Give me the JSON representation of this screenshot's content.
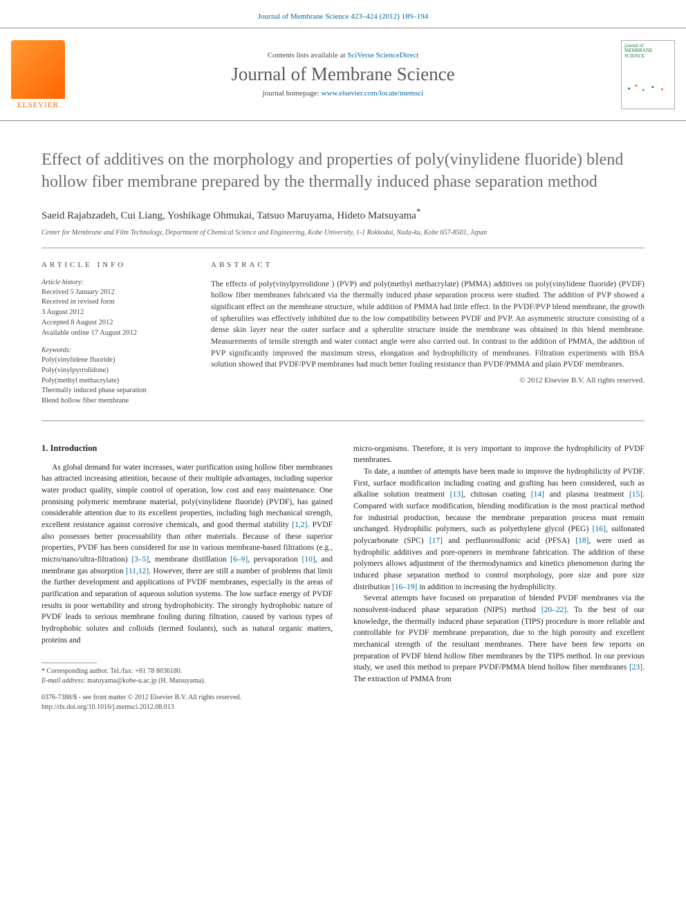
{
  "header": {
    "top_link_prefix": "Journal of Membrane Science 423–424 (2012) 189–194",
    "contents_text": "Contents lists available at ",
    "contents_link": "SciVerse ScienceDirect",
    "journal_name": "Journal of Membrane Science",
    "homepage_text": "journal homepage: ",
    "homepage_link": "www.elsevier.com/locate/memsci",
    "elsevier_label": "ELSEVIER",
    "cover_title": "journal of MEMBRANE SCIENCE"
  },
  "article": {
    "title": "Effect of additives on the morphology and properties of poly(vinylidene fluoride) blend hollow fiber membrane prepared by the thermally induced phase separation method",
    "authors": "Saeid Rajabzadeh, Cui Liang, Yoshikage Ohmukai, Tatsuo Maruyama, Hideto Matsuyama",
    "corr_marker": "*",
    "affiliation": "Center for Membrane and Film Technology, Department of Chemical Science and Engineering, Kobe University, 1-1 Rokkodai, Nada-ku, Kobe 657-8501, Japan"
  },
  "info": {
    "heading": "ARTICLE INFO",
    "history_label": "Article history:",
    "history": [
      "Received 5 January 2012",
      "Received in revised form",
      "3 August 2012",
      "Accepted 8 August 2012",
      "Available online 17 August 2012"
    ],
    "keywords_label": "Keywords:",
    "keywords": [
      "Poly(vinylidene fluoride)",
      "Poly(vinylpyrrolidone)",
      "Poly(methyl methacrylate)",
      "Thermally induced phase separation",
      "Blend hollow fiber membrane"
    ]
  },
  "abstract": {
    "heading": "ABSTRACT",
    "text": "The effects of poly(vinylpyrrolidone ) (PVP) and poly(methyl methacrylate) (PMMA) additives on poly(vinylidene fluoride) (PVDF) hollow fiber membranes fabricated via the thermally induced phase separation process were studied. The addition of PVP showed a significant effect on the membrane structure, while addition of PMMA had little effect. In the PVDF/PVP blend membrane, the growth of spherulites was effectively inhibited due to the low compatibility between PVDF and PVP. An asymmetric structure consisting of a dense skin layer near the outer surface and a spherulite structure inside the membrane was obtained in this blend membrane. Measurements of tensile strength and water contact angle were also carried out. In contrast to the addition of PMMA, the addition of PVP significantly improved the maximum stress, elongation and hydrophilicity of membranes. Filtration experiments with BSA solution showed that PVDF/PVP membranes had much better fouling resistance than PVDF/PMMA and plain PVDF membranes.",
    "copyright": "© 2012 Elsevier B.V. All rights reserved."
  },
  "body": {
    "section_heading": "1. Introduction",
    "col1_p1_a": "As global demand for water increases, water purification using hollow fiber membranes has attracted increasing attention, because of their multiple advantages, including superior water product quality, simple control of operation, low cost and easy maintenance. One promising polymeric membrane material, poly(vinylidene fluoride) (PVDF), has gained considerable attention due to its excellent properties, including high mechanical strength, excellent resistance against corrosive chemicals, and good thermal stability ",
    "ref_1_2": "[1,2]",
    "col1_p1_b": ". PVDF also possesses better processability than other materials. Because of these superior properties, PVDF has been considered for use in various membrane-based filtrations (e.g., micro/nano/ultra-filtration) ",
    "ref_3_5": "[3–5]",
    "col1_p1_c": ", membrane distillation ",
    "ref_6_9": "[6–9]",
    "col1_p1_d": ", pervaporation ",
    "ref_10": "[10]",
    "col1_p1_e": ", and membrane gas absorption ",
    "ref_11_12": "[11,12]",
    "col1_p1_f": ". However, there are still a number of problems that limit the further development and applications of PVDF membranes, especially in the areas of purification and separation of aqueous solution systems. The low surface energy of PVDF results in poor wettability and strong hydrophobicity. The strongly hydrophobic nature of PVDF leads to serious membrane fouling during filtration, caused by various types of hydrophobic solutes and colloids (termed foulants), such as natural organic matters, proteins and",
    "col2_p0": "micro-organisms. Therefore, it is very important to improve the hydrophilicity of PVDF membranes.",
    "col2_p1_a": "To date, a number of attempts have been made to improve the hydrophilicity of PVDF. First, surface modification including coating and grafting has been considered, such as alkaline solution treatment ",
    "ref_13": "[13]",
    "col2_p1_b": ", chitosan coating ",
    "ref_14": "[14]",
    "col2_p1_c": " and plasma treatment ",
    "ref_15": "[15]",
    "col2_p1_d": ". Compared with surface modification, blending modification is the most practical method for industrial production, because the membrane preparation process must remain unchanged. Hydrophilic polymers, such as polyethylene glycol (PEG) ",
    "ref_16": "[16]",
    "col2_p1_e": ", sulfonated polycarbonate (SPC) ",
    "ref_17": "[17]",
    "col2_p1_f": " and perfluorosulfonic acid (PFSA) ",
    "ref_18": "[18]",
    "col2_p1_g": ", were used as hydrophilic additives and pore-openers in membrane fabrication. The addition of these polymers allows adjustment of the thermodynamics and kinetics phenomenon during the induced phase separation method to control morphology, pore size and pore size distribution ",
    "ref_16_19": "[16–19]",
    "col2_p1_h": " in addition to increasing the hydrophilicity.",
    "col2_p2_a": "Several attempts have focused on preparation of blended PVDF membranes via the nonsolvent-induced phase separation (NIPS) method ",
    "ref_20_22": "[20–22]",
    "col2_p2_b": ". To the best of our knowledge, the thermally induced phase separation (TIPS) procedure is more reliable and controllable for PVDF membrane preparation, due to the high porosity and excellent mechanical strength of the resultant membranes. There have been few reports on preparation of PVDF blend hollow fiber membranes by the TIPS method. In our previous study, we used this method to prepare PVDF/PMMA blend hollow fiber membranes ",
    "ref_23": "[23]",
    "col2_p2_c": ". The extraction of PMMA from"
  },
  "footnote": {
    "corr_text": "Corresponding author. Tel./fax: +81 78 8036180.",
    "email_label": "E-mail address: ",
    "email": "matuyama@kobe-u.ac.jp",
    "email_suffix": " (H. Matsuyama)."
  },
  "footer": {
    "line1": "0376-7388/$ - see front matter © 2012 Elsevier B.V. All rights reserved.",
    "line2": "http://dx.doi.org/10.1016/j.memsci.2012.08.013"
  },
  "colors": {
    "link": "#0066a1",
    "text": "#333333",
    "heading_gray": "#6a6a6a",
    "elsevier_orange": "#ff6600",
    "rule": "#999999"
  }
}
